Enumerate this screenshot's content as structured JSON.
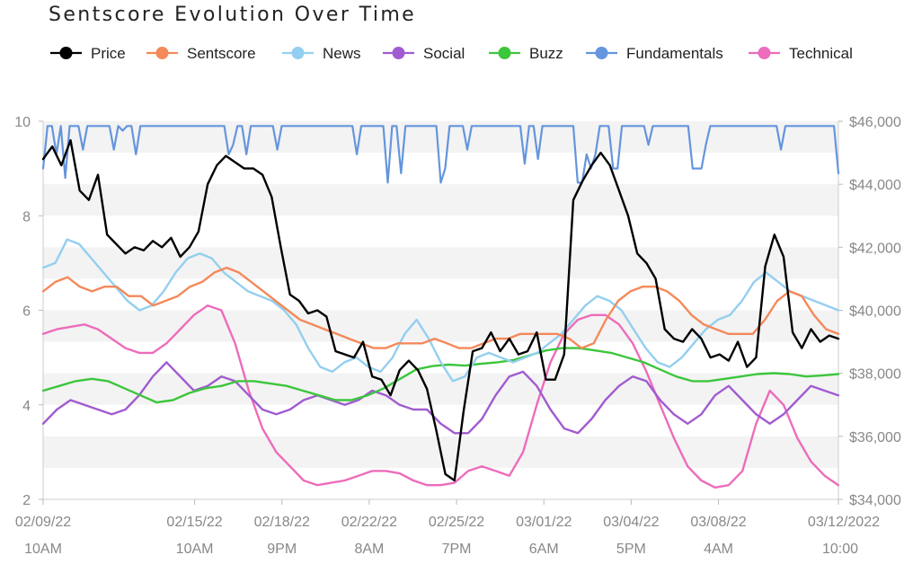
{
  "chart_data": {
    "type": "line",
    "title": "Sentscore Evolution Over Time",
    "legend_position": "top",
    "grid": "horizontal alternating bands",
    "x_range": [
      "2022-02-09T10:00",
      "2022-03-12T22:00"
    ],
    "left_axis": {
      "range": [
        2,
        10
      ],
      "ticks": [
        2,
        4,
        6,
        8,
        10
      ],
      "tick_labels": [
        "2",
        "4",
        "6",
        "8",
        "10"
      ]
    },
    "right_axis": {
      "range": [
        34000,
        46000
      ],
      "ticks": [
        34000,
        36000,
        38000,
        40000,
        42000,
        44000,
        46000
      ],
      "tick_labels": [
        "$34,000",
        "$36,000",
        "$38,000",
        "$40,000",
        "$42,000",
        "$44,000",
        "$46,000"
      ]
    },
    "x_ticks": [
      {
        "x": "2022-02-09T10:00",
        "line1": "02/09/22",
        "line2": "10AM"
      },
      {
        "x": "2022-02-15T10:00",
        "line1": "02/15/22",
        "line2": "10AM"
      },
      {
        "x": "2022-02-18T21:00",
        "line1": "02/18/22",
        "line2": "9PM"
      },
      {
        "x": "2022-02-22T08:00",
        "line1": "02/22/22",
        "line2": "8AM"
      },
      {
        "x": "2022-02-25T19:00",
        "line1": "02/25/22",
        "line2": "7PM"
      },
      {
        "x": "2022-03-01T06:00",
        "line1": "03/01/22",
        "line2": "6AM"
      },
      {
        "x": "2022-03-04T17:00",
        "line1": "03/04/22",
        "line2": "5PM"
      },
      {
        "x": "2022-03-08T04:00",
        "line1": "03/08/22",
        "line2": "4AM"
      },
      {
        "x": "2022-03-12T22:00",
        "line1": "03/12/2022",
        "line2": "10:00"
      }
    ],
    "series": [
      {
        "name": "Price",
        "color": "#000000",
        "axis": "right",
        "values": [
          44800,
          45200,
          44600,
          45400,
          43800,
          43500,
          44300,
          42400,
          42100,
          41800,
          42000,
          41900,
          42200,
          42000,
          42300,
          41700,
          42000,
          42500,
          44000,
          44600,
          44900,
          44700,
          44500,
          44500,
          44300,
          43600,
          42000,
          40500,
          40300,
          39900,
          40000,
          39800,
          38700,
          38600,
          38500,
          39000,
          37900,
          37800,
          37300,
          38100,
          38400,
          38100,
          37500,
          36200,
          34800,
          34600,
          36800,
          38700,
          38800,
          39300,
          38700,
          39100,
          38600,
          38700,
          39300,
          37800,
          37800,
          38600,
          43500,
          44100,
          44600,
          45000,
          44600,
          43800,
          43000,
          41800,
          41500,
          41000,
          39400,
          39100,
          39000,
          39400,
          39100,
          38500,
          38600,
          38400,
          39000,
          38200,
          38500,
          41400,
          42400,
          41700,
          39300,
          38800,
          39400,
          39000,
          39200,
          39100
        ]
      },
      {
        "name": "Sentscore",
        "color": "#f4895a",
        "axis": "left",
        "values": [
          6.4,
          6.6,
          6.7,
          6.5,
          6.4,
          6.5,
          6.5,
          6.3,
          6.3,
          6.1,
          6.2,
          6.3,
          6.5,
          6.6,
          6.8,
          6.9,
          6.8,
          6.6,
          6.4,
          6.2,
          6.0,
          5.8,
          5.7,
          5.6,
          5.5,
          5.4,
          5.3,
          5.2,
          5.2,
          5.3,
          5.3,
          5.3,
          5.4,
          5.3,
          5.2,
          5.2,
          5.3,
          5.4,
          5.4,
          5.5,
          5.5,
          5.5,
          5.5,
          5.4,
          5.2,
          5.3,
          5.8,
          6.2,
          6.4,
          6.5,
          6.5,
          6.4,
          6.2,
          5.9,
          5.7,
          5.6,
          5.5,
          5.5,
          5.5,
          5.8,
          6.2,
          6.4,
          6.3,
          5.9,
          5.6,
          5.5
        ]
      },
      {
        "name": "News",
        "color": "#93cff0",
        "axis": "left",
        "values": [
          6.9,
          7.0,
          7.5,
          7.4,
          7.1,
          6.8,
          6.5,
          6.2,
          6.0,
          6.1,
          6.4,
          6.8,
          7.1,
          7.2,
          7.1,
          6.8,
          6.6,
          6.4,
          6.3,
          6.2,
          6.0,
          5.7,
          5.2,
          4.8,
          4.7,
          4.9,
          5.0,
          4.8,
          4.7,
          5.0,
          5.5,
          5.8,
          5.4,
          4.9,
          4.5,
          4.6,
          5.0,
          5.1,
          5.0,
          4.9,
          5.0,
          5.1,
          5.3,
          5.5,
          5.8,
          6.1,
          6.3,
          6.2,
          6.0,
          5.6,
          5.2,
          4.9,
          4.8,
          5.0,
          5.3,
          5.6,
          5.8,
          5.9,
          6.2,
          6.6,
          6.8,
          6.6,
          6.4,
          6.3,
          6.2,
          6.1,
          6.0
        ]
      },
      {
        "name": "Social",
        "color": "#a15bd0",
        "axis": "left",
        "values": [
          3.6,
          3.9,
          4.1,
          4.0,
          3.9,
          3.8,
          3.9,
          4.2,
          4.6,
          4.9,
          4.6,
          4.3,
          4.4,
          4.6,
          4.5,
          4.2,
          3.9,
          3.8,
          3.9,
          4.1,
          4.2,
          4.1,
          4.0,
          4.1,
          4.3,
          4.2,
          4.0,
          3.9,
          3.9,
          3.6,
          3.4,
          3.4,
          3.7,
          4.2,
          4.6,
          4.7,
          4.4,
          3.9,
          3.5,
          3.4,
          3.7,
          4.1,
          4.4,
          4.6,
          4.5,
          4.1,
          3.8,
          3.6,
          3.8,
          4.2,
          4.4,
          4.1,
          3.8,
          3.6,
          3.8,
          4.1,
          4.4,
          4.3,
          4.2
        ]
      },
      {
        "name": "Buzz",
        "color": "#3cc63c",
        "axis": "left",
        "values": [
          4.3,
          4.4,
          4.5,
          4.55,
          4.5,
          4.35,
          4.2,
          4.05,
          4.1,
          4.25,
          4.35,
          4.4,
          4.5,
          4.5,
          4.45,
          4.4,
          4.3,
          4.2,
          4.1,
          4.1,
          4.2,
          4.35,
          4.55,
          4.75,
          4.82,
          4.85,
          4.83,
          4.87,
          4.9,
          4.95,
          5.05,
          5.15,
          5.2,
          5.2,
          5.15,
          5.1,
          5.0,
          4.9,
          4.75,
          4.6,
          4.5,
          4.5,
          4.55,
          4.6,
          4.65,
          4.67,
          4.65,
          4.6,
          4.62,
          4.65
        ]
      },
      {
        "name": "Fundamentals",
        "color": "#6495dd",
        "axis": "left",
        "values": [
          9.0,
          9.9,
          9.9,
          9.3,
          9.9,
          8.8,
          9.9,
          9.9,
          9.9,
          9.4,
          9.9,
          9.9,
          9.9,
          9.9,
          9.9,
          9.9,
          9.4,
          9.9,
          9.8,
          9.9,
          9.9,
          9.3,
          9.9,
          9.9,
          9.9,
          9.9,
          9.9,
          9.9,
          9.9,
          9.9,
          9.9,
          9.9,
          9.9,
          9.9,
          9.9,
          9.9,
          9.9,
          9.9,
          9.9,
          9.9,
          9.9,
          9.9,
          9.3,
          9.5,
          9.9,
          9.9,
          9.3,
          9.9,
          9.9,
          9.9,
          9.9,
          9.9,
          9.9,
          9.4,
          9.9,
          9.9,
          9.9,
          9.9,
          9.9,
          9.9,
          9.9,
          9.9,
          9.9,
          9.9,
          9.9,
          9.9,
          9.9,
          9.9,
          9.9,
          9.9,
          9.9,
          9.3,
          9.9,
          9.9,
          9.9,
          9.9,
          9.9,
          9.9,
          8.7,
          9.9,
          9.9,
          8.9,
          9.9,
          9.9,
          9.9,
          9.9,
          9.9,
          9.9,
          9.9,
          9.9,
          8.7,
          9.0,
          9.9,
          9.9,
          9.9,
          9.9,
          9.4,
          9.9,
          9.9,
          9.9,
          9.9,
          9.9,
          9.9,
          9.9,
          9.9,
          9.9,
          9.9,
          9.9,
          9.9,
          9.1,
          9.9,
          9.9,
          9.2,
          9.9,
          9.9,
          9.9,
          9.9,
          9.9,
          9.9,
          9.9,
          9.9,
          8.7,
          8.7,
          9.3,
          9.0,
          9.3,
          9.9,
          9.9,
          9.9,
          9.0,
          9.0,
          9.9,
          9.9,
          9.9,
          9.9,
          9.9,
          9.9,
          9.5,
          9.9,
          9.9,
          9.9,
          9.9,
          9.9,
          9.9,
          9.9,
          9.9,
          9.9,
          9.0,
          9.0,
          9.0,
          9.5,
          9.9,
          9.9,
          9.9,
          9.9,
          9.9,
          9.9,
          9.9,
          9.9,
          9.9,
          9.9,
          9.9,
          9.9,
          9.9,
          9.9,
          9.9,
          9.9,
          9.4,
          9.9,
          9.9,
          9.9,
          9.9,
          9.9,
          9.9,
          9.9,
          9.9,
          9.9,
          9.9,
          9.9,
          9.9,
          8.9
        ]
      },
      {
        "name": "Technical",
        "color": "#ed6cbb",
        "axis": "left",
        "values": [
          5.5,
          5.6,
          5.65,
          5.7,
          5.6,
          5.4,
          5.2,
          5.1,
          5.1,
          5.3,
          5.6,
          5.9,
          6.1,
          6.0,
          5.3,
          4.3,
          3.5,
          3.0,
          2.7,
          2.4,
          2.3,
          2.35,
          2.4,
          2.5,
          2.6,
          2.6,
          2.55,
          2.4,
          2.3,
          2.3,
          2.35,
          2.6,
          2.7,
          2.6,
          2.5,
          3.0,
          4.0,
          4.9,
          5.5,
          5.8,
          5.9,
          5.9,
          5.7,
          5.3,
          4.7,
          4.0,
          3.3,
          2.7,
          2.4,
          2.25,
          2.3,
          2.6,
          3.6,
          4.3,
          4.0,
          3.3,
          2.8,
          2.5,
          2.3
        ]
      }
    ]
  }
}
